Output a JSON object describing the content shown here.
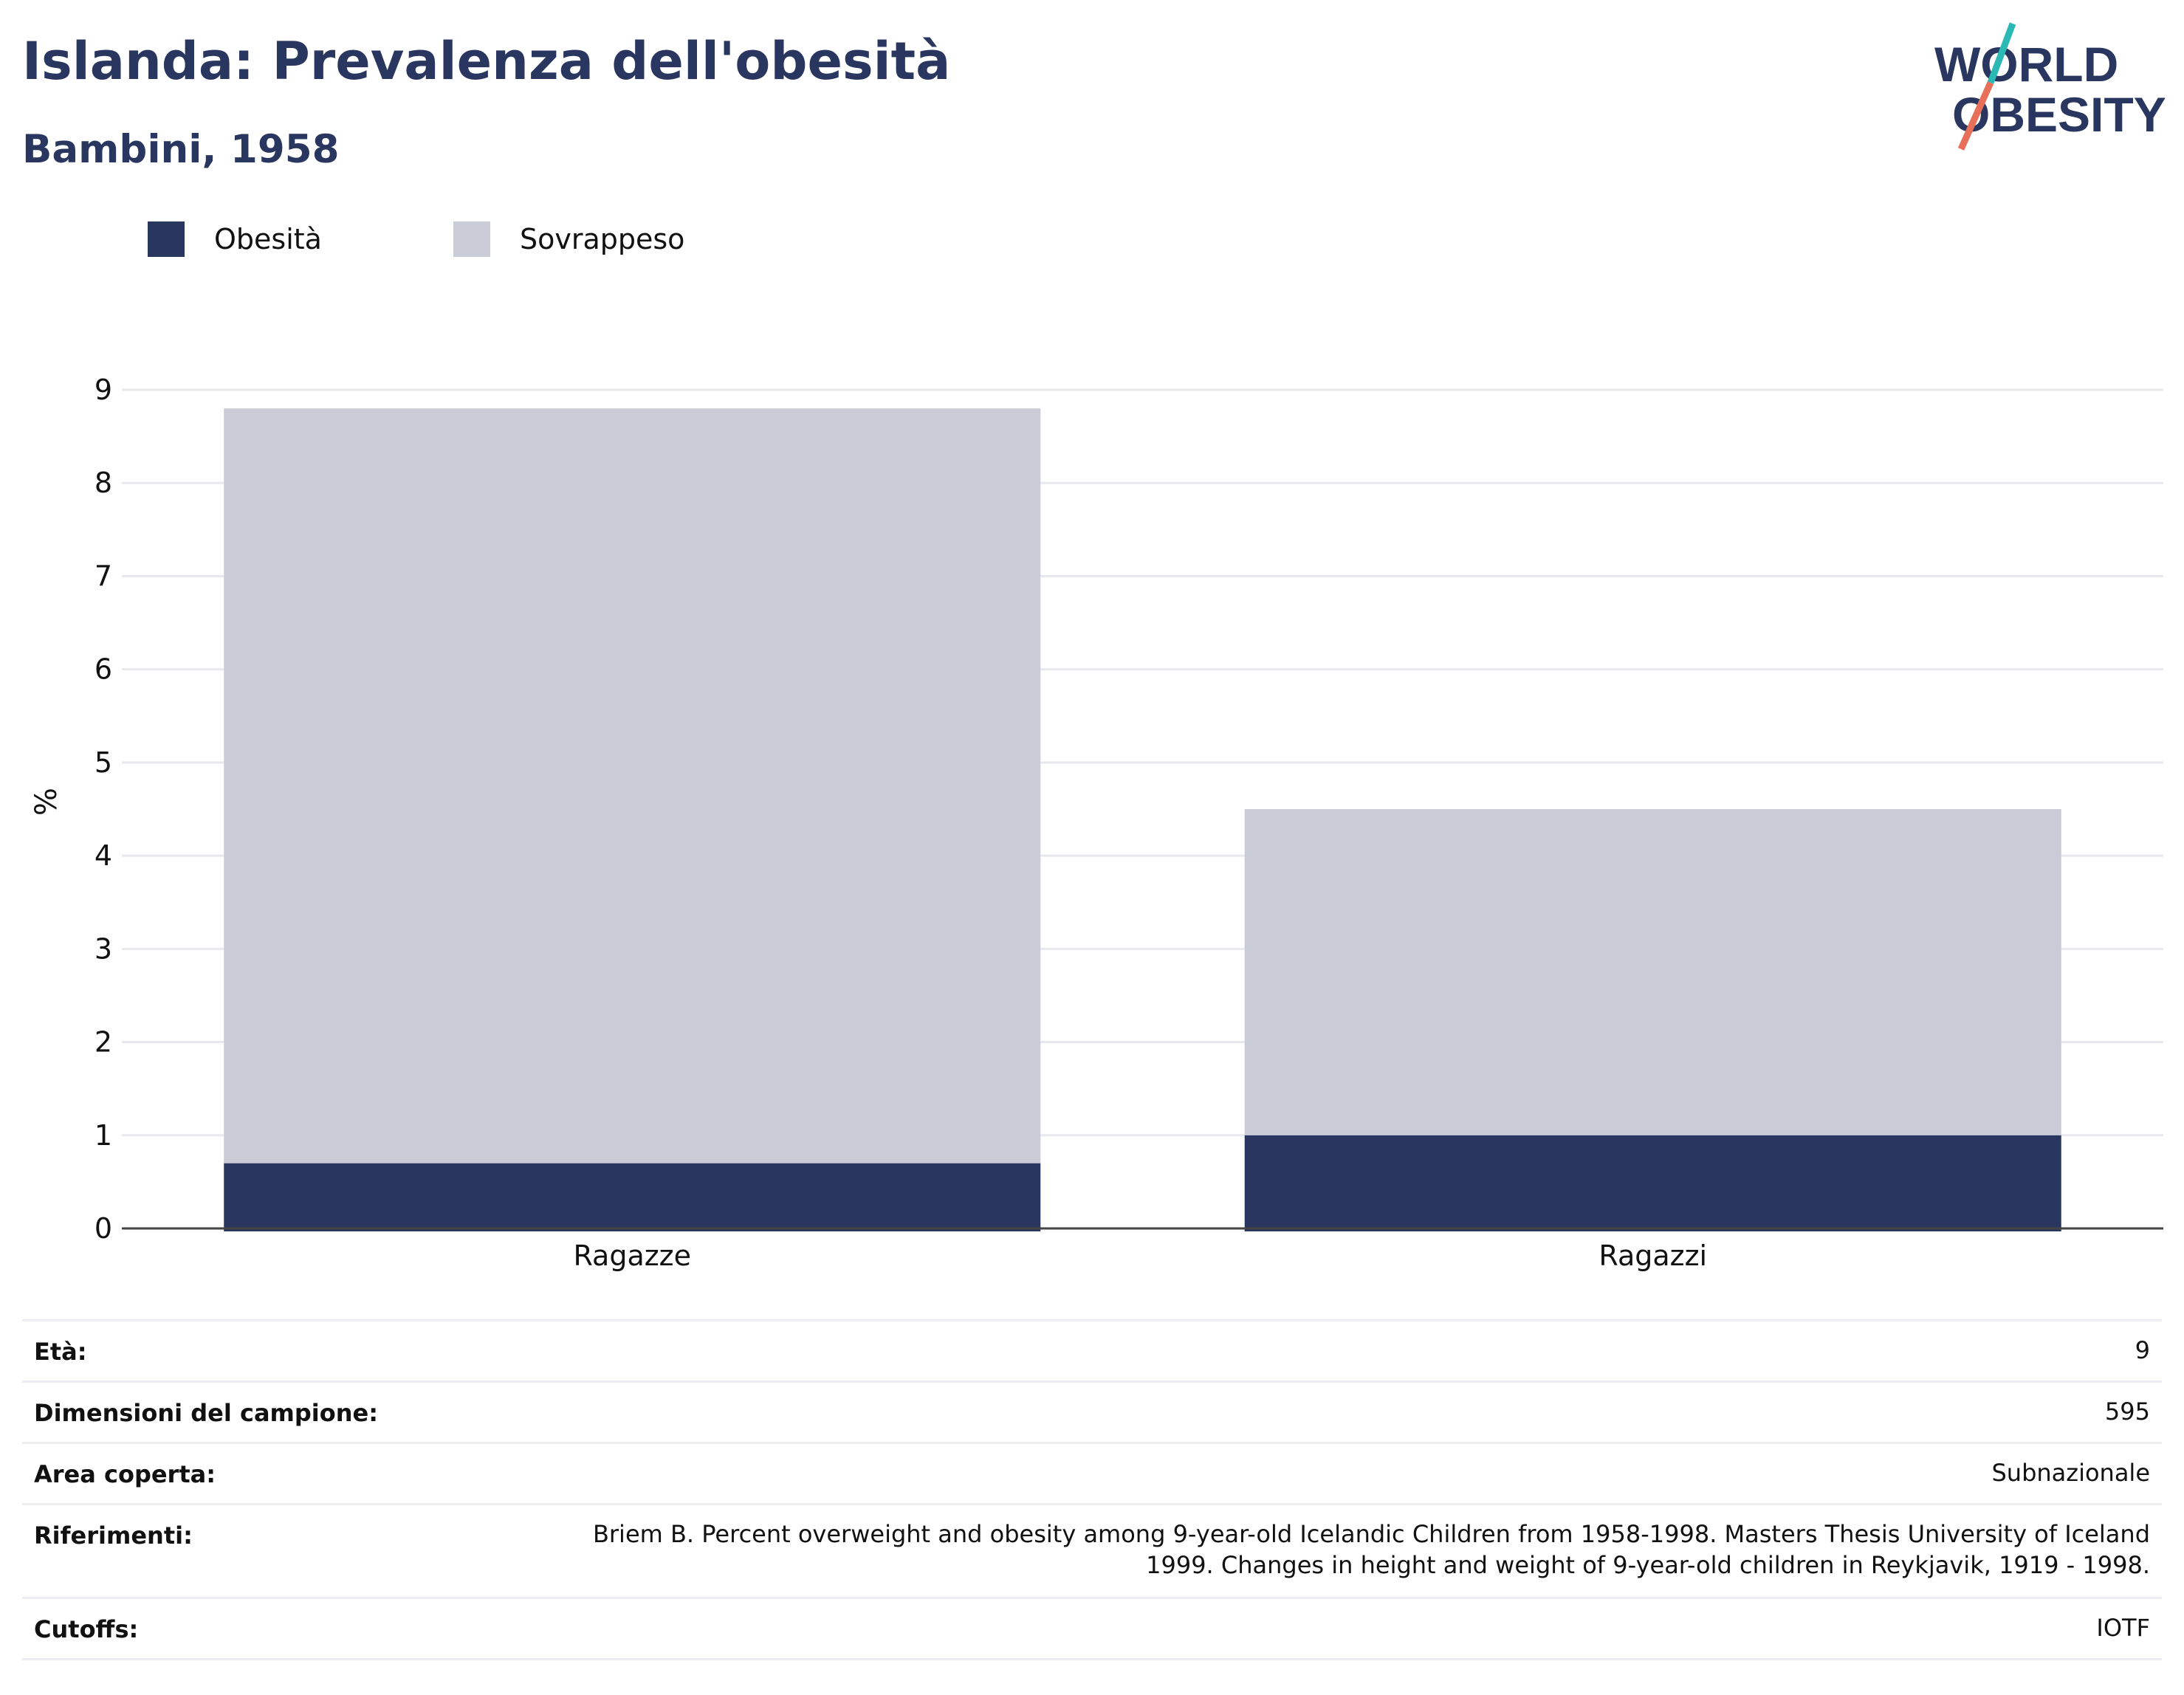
{
  "header": {
    "title": "Islanda: Prevalenza dell'obesità",
    "subtitle": "Bambini, 1958"
  },
  "logo": {
    "line1": "WORLD",
    "line2": "OBESITY",
    "color_text": "#29365f",
    "color_slash_top": "#2bb9b5",
    "color_slash_bottom": "#e8705a"
  },
  "legend": {
    "items": [
      {
        "label": "Obesità",
        "color": "#29365f"
      },
      {
        "label": "Sovrappeso",
        "color": "#c9ccd7"
      }
    ]
  },
  "chart_data": {
    "type": "bar",
    "stacked": true,
    "categories": [
      "Ragazze",
      "Ragazzi"
    ],
    "series": [
      {
        "name": "Obesità",
        "color": "#29365f",
        "values": [
          0.7,
          1.0
        ]
      },
      {
        "name": "Sovrappeso",
        "color": "#c9ccd7",
        "values": [
          8.1,
          3.5
        ]
      }
    ],
    "ylabel": "%",
    "ylim": [
      0,
      9
    ],
    "yticks": [
      "0",
      "1",
      "2",
      "3",
      "4",
      "5",
      "6",
      "7",
      "8",
      "9"
    ],
    "grid": true,
    "legend_position": "top-left"
  },
  "info": {
    "rows": [
      {
        "label": "Età:",
        "value": "9"
      },
      {
        "label": "Dimensioni del campione:",
        "value": "595"
      },
      {
        "label": "Area coperta:",
        "value": "Subnazionale"
      },
      {
        "label": "Riferimenti:",
        "value_lines": [
          "Briem B. Percent overweight and obesity among 9-year-old Icelandic Children from 1958-1998. Masters Thesis University of Iceland",
          "1999. Changes in height and weight of 9-year-old children in Reykjavik, 1919 - 1998."
        ]
      },
      {
        "label": "Cutoffs:",
        "value": "IOTF"
      }
    ]
  }
}
